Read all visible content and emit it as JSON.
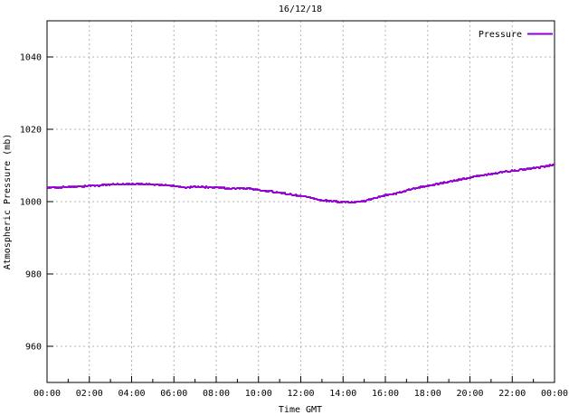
{
  "window": {
    "title": "16/12/18"
  },
  "colors": {
    "series_line": "#9400d3",
    "grid": "#b4b4b4",
    "axis": "#000000",
    "background": "#ffffff",
    "text": "#000000"
  },
  "legend": {
    "label": "Pressure",
    "position": "top-right"
  },
  "chart_data": {
    "type": "line",
    "title": "16/12/18",
    "xlabel": "Time GMT",
    "ylabel": "Atmospheric Pressure (mb)",
    "xlim_hours": [
      0,
      24
    ],
    "ylim": [
      950,
      1050
    ],
    "grid": true,
    "legend_position": "top-right",
    "x_major_tick_interval_hours": 2,
    "x_minor_tick_interval_hours": 1,
    "x_tick_labels": [
      "00:00",
      "02:00",
      "04:00",
      "06:00",
      "08:00",
      "10:00",
      "12:00",
      "14:00",
      "16:00",
      "18:00",
      "20:00",
      "22:00",
      "00:00"
    ],
    "y_ticks": [
      960,
      980,
      1000,
      1020,
      1040
    ],
    "series": [
      {
        "name": "Pressure",
        "color": "#9400d3",
        "x_hours": [
          0,
          0.5,
          1,
          1.5,
          2,
          2.5,
          3,
          3.5,
          4,
          4.5,
          5,
          5.5,
          6,
          6.5,
          7,
          7.5,
          8,
          8.5,
          9,
          9.5,
          10,
          10.5,
          11,
          11.5,
          12,
          12.5,
          13,
          13.5,
          14,
          14.5,
          15,
          15.5,
          16,
          16.5,
          17,
          17.5,
          18,
          18.5,
          19,
          19.5,
          20,
          20.5,
          21,
          21.5,
          22,
          22.5,
          23,
          23.5,
          24
        ],
        "values": [
          1003.8,
          1003.9,
          1004.1,
          1004.2,
          1004.4,
          1004.5,
          1004.7,
          1004.8,
          1004.9,
          1004.8,
          1004.8,
          1004.6,
          1004.4,
          1003.8,
          1004.1,
          1004.0,
          1003.9,
          1003.7,
          1003.6,
          1003.7,
          1003.2,
          1002.9,
          1002.5,
          1002.0,
          1001.5,
          1001.0,
          1000.4,
          1000.1,
          999.9,
          999.8,
          1000.2,
          1000.9,
          1001.8,
          1002.2,
          1003.1,
          1003.8,
          1004.3,
          1004.9,
          1005.5,
          1006.1,
          1006.7,
          1007.2,
          1007.7,
          1008.1,
          1008.5,
          1008.9,
          1009.3,
          1009.7,
          1010.3
        ]
      }
    ]
  }
}
